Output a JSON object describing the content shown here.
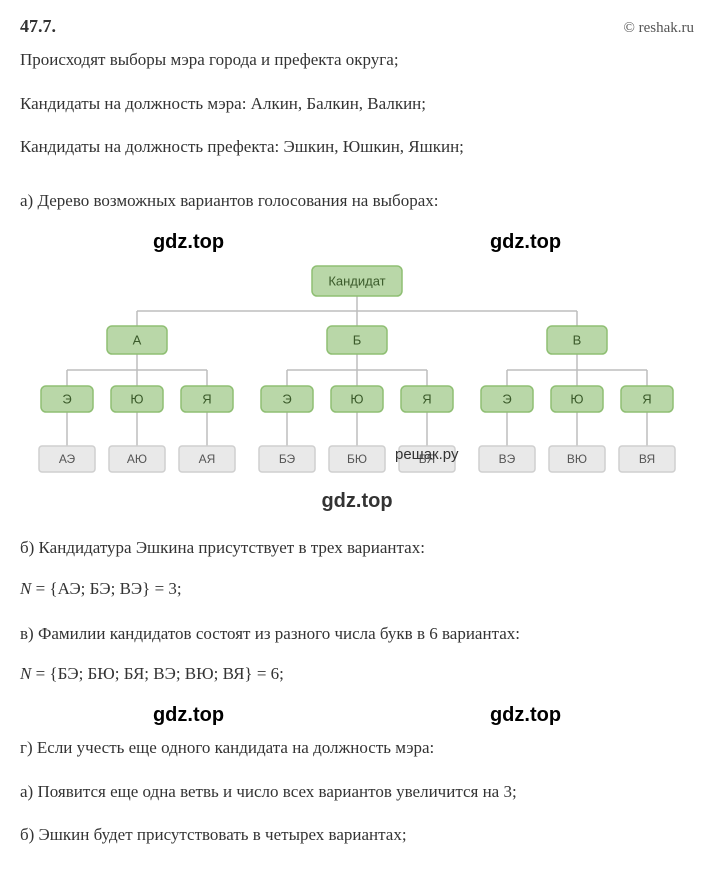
{
  "header": {
    "problem_number": "47.7.",
    "copyright": "© reshak.ru"
  },
  "intro": {
    "line1": "Происходят выборы мэра города и префекта округа;",
    "line2": "Кандидаты на должность мэра:  Алкин, Балкин, Валкин;",
    "line3": "Кандидаты на должность префекта:  Эшкин, Юшкин, Яшкин;"
  },
  "part_a": {
    "label": "а) Дерево возможных вариантов голосования на выборах:"
  },
  "watermarks": {
    "gdz": "gdz.top",
    "reshak": "решак.ру"
  },
  "tree": {
    "root": "Кандидат",
    "level1": [
      "А",
      "Б",
      "В"
    ],
    "level2": [
      "Э",
      "Ю",
      "Я"
    ],
    "leaves": [
      "АЭ",
      "АЮ",
      "АЯ",
      "БЭ",
      "БЮ",
      "БЯ",
      "ВЭ",
      "ВЮ",
      "ВЯ"
    ],
    "colors": {
      "node_fill": "#b9d7a8",
      "node_stroke": "#8fbf73",
      "leaf_fill": "#e9e9e9",
      "leaf_stroke": "#cfcfcf",
      "line": "#bdbdbd",
      "text": "#3a5a2a",
      "leaf_text": "#555"
    },
    "sizes": {
      "root_w": 90,
      "root_h": 30,
      "l1_w": 60,
      "l1_h": 28,
      "l2_w": 52,
      "l2_h": 26,
      "leaf_w": 56,
      "leaf_h": 26,
      "radius": 5
    }
  },
  "part_b": {
    "label": "б) Кандидатура Эшкина присутствует в трех вариантах:",
    "formula_lhs": "N",
    "formula_rhs": "= {АЭ;  БЭ;  ВЭ} = 3;"
  },
  "part_v": {
    "label": "в) Фамилии кандидатов состоят из разного числа букв в 6 вариантах:",
    "formula_lhs": "N",
    "formula_rhs": "= {БЭ;  БЮ;  БЯ;  ВЭ;  ВЮ;  ВЯ} = 6;"
  },
  "part_g": {
    "label": "г) Если учесть еще одного кандидата на должность мэра:",
    "sub_a": "а) Появится еще одна ветвь и число всех вариантов увеличится на 3;",
    "sub_b": "б) Эшкин будет присутствовать в четырех вариантах;"
  }
}
